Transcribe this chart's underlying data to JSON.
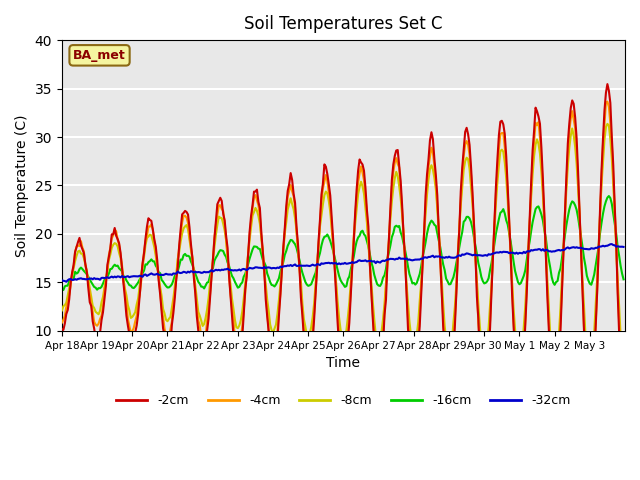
{
  "title": "Soil Temperatures Set C",
  "xlabel": "Time",
  "ylabel": "Soil Temperature (C)",
  "label_text": "BA_met",
  "ylim": [
    10,
    40
  ],
  "background_color": "#e8e8e8",
  "legend_labels": [
    "-2cm",
    "-4cm",
    "-8cm",
    "-16cm",
    "-32cm"
  ],
  "legend_colors": [
    "#cc0000",
    "#ff9900",
    "#cccc00",
    "#00cc00",
    "#0000cc"
  ],
  "xtick_labels": [
    "Apr 18",
    "Apr 19",
    "Apr 20",
    "Apr 21",
    "Apr 22",
    "Apr 23",
    "Apr 24",
    "Apr 25",
    "Apr 26",
    "Apr 27",
    "Apr 28",
    "Apr 29",
    "Apr 30",
    "May 1",
    "May 2",
    "May 3"
  ],
  "grid_color": "#ffffff",
  "line_width": 1.5
}
